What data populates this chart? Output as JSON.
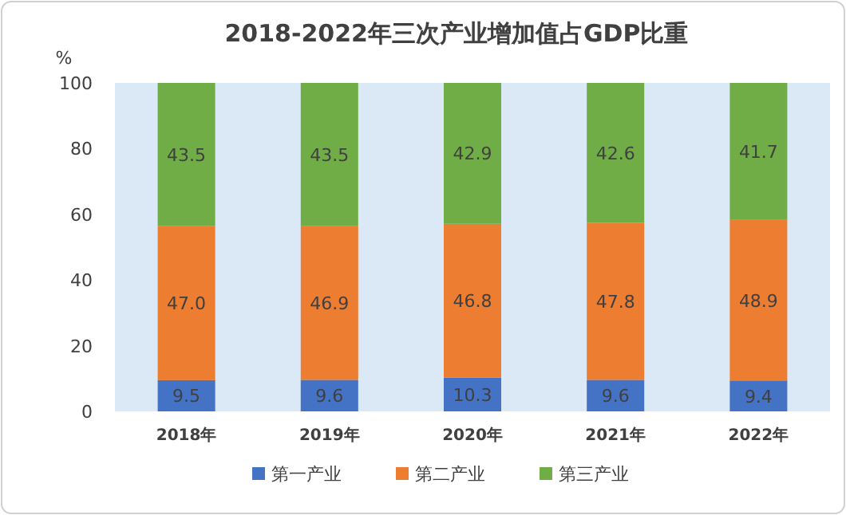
{
  "chart_data": {
    "type": "bar",
    "stacked": true,
    "title": "2018-2022年三次产业增加值占GDP比重",
    "ylabel": "%",
    "categories": [
      "2018年",
      "2019年",
      "2020年",
      "2021年",
      "2022年"
    ],
    "series": [
      {
        "name": "第一产业",
        "color": "#4472c4",
        "values": [
          9.5,
          9.6,
          10.3,
          9.6,
          9.4
        ],
        "value_labels": [
          "9.5",
          "9.6",
          "10.3",
          "9.6",
          "9.4"
        ]
      },
      {
        "name": "第二产业",
        "color": "#ed7d31",
        "values": [
          47.0,
          46.9,
          46.8,
          47.8,
          48.9
        ],
        "value_labels": [
          "47.0",
          "46.9",
          "46.8",
          "47.8",
          "48.9"
        ]
      },
      {
        "name": "第三产业",
        "color": "#70ad47",
        "values": [
          43.5,
          43.5,
          42.9,
          42.6,
          41.7
        ],
        "value_labels": [
          "43.5",
          "43.5",
          "42.9",
          "42.6",
          "41.7"
        ]
      }
    ],
    "ylim": [
      0,
      100
    ],
    "yticks": [
      0,
      20,
      40,
      60,
      80,
      100
    ],
    "legend": "bottom",
    "grid": false
  }
}
